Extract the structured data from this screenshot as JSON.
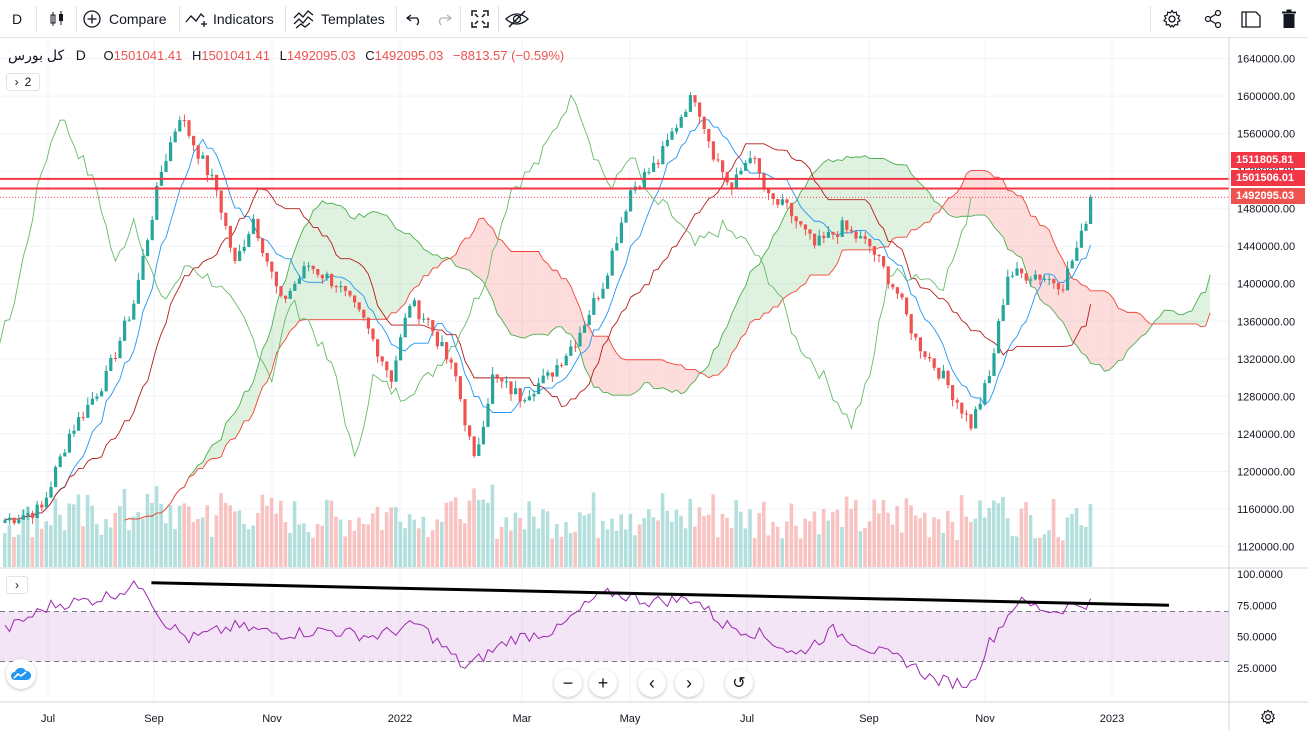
{
  "toolbar": {
    "interval": "D",
    "compare_label": "Compare",
    "indicators_label": "Indicators",
    "templates_label": "Templates"
  },
  "legend": {
    "symbol": "کل بورس",
    "interval": "D",
    "open_label": "O",
    "open": "1501041.41",
    "high_label": "H",
    "high": "1501041.41",
    "low_label": "L",
    "low": "1492095.03",
    "close_label": "C",
    "close": "1492095.03",
    "change": "−8813.57 (−0.59%)",
    "indicator_count": "2"
  },
  "price_tags": [
    {
      "text": "1511805.81",
      "color": "#f23645"
    },
    {
      "text": "1501506.01",
      "color": "#f23645"
    },
    {
      "text": "1492095.03",
      "color": "#ef5350"
    }
  ],
  "colors": {
    "up": "#26a69a",
    "down": "#ef5350",
    "kumo_bull": "#4caf50",
    "kumo_bear": "#f44336",
    "tenkan": "#2196f3",
    "kijun": "#b71c1c",
    "rsi": "#9c27b0"
  },
  "chart_data": {
    "type": "candlestick",
    "price_axis_ticks": [
      "1640000.00",
      "1600000.00",
      "1560000.00",
      "1520000.00",
      "1480000.00",
      "1440000.00",
      "1400000.00",
      "1360000.00",
      "1320000.00",
      "1280000.00",
      "1240000.00",
      "1200000.00",
      "1160000.00",
      "1120000.00"
    ],
    "price_range": [
      1098000,
      1662000
    ],
    "time_axis_labels": [
      "Jul",
      "Sep",
      "Nov",
      "2022",
      "Mar",
      "May",
      "Jul",
      "Sep",
      "Nov",
      "2023"
    ],
    "horizontal_lines": [
      1511805.81,
      1501506.01
    ],
    "close_keyframes": [
      [
        0,
        1148000
      ],
      [
        8,
        1160000
      ],
      [
        14,
        1240000
      ],
      [
        22,
        1300000
      ],
      [
        28,
        1380000
      ],
      [
        34,
        1520000
      ],
      [
        38,
        1580000
      ],
      [
        42,
        1540000
      ],
      [
        46,
        1500000
      ],
      [
        50,
        1420000
      ],
      [
        54,
        1470000
      ],
      [
        60,
        1380000
      ],
      [
        66,
        1420000
      ],
      [
        72,
        1400000
      ],
      [
        78,
        1360000
      ],
      [
        84,
        1300000
      ],
      [
        88,
        1380000
      ],
      [
        92,
        1360000
      ],
      [
        98,
        1300000
      ],
      [
        102,
        1210000
      ],
      [
        106,
        1300000
      ],
      [
        112,
        1280000
      ],
      [
        118,
        1300000
      ],
      [
        124,
        1340000
      ],
      [
        130,
        1400000
      ],
      [
        136,
        1500000
      ],
      [
        142,
        1530000
      ],
      [
        148,
        1590000
      ],
      [
        150,
        1600000
      ],
      [
        154,
        1540000
      ],
      [
        158,
        1500000
      ],
      [
        162,
        1540000
      ],
      [
        166,
        1490000
      ],
      [
        170,
        1480000
      ],
      [
        176,
        1440000
      ],
      [
        182,
        1460000
      ],
      [
        188,
        1440000
      ],
      [
        194,
        1390000
      ],
      [
        198,
        1340000
      ],
      [
        204,
        1300000
      ],
      [
        210,
        1250000
      ],
      [
        214,
        1300000
      ],
      [
        218,
        1410000
      ],
      [
        224,
        1410000
      ],
      [
        230,
        1400000
      ],
      [
        234,
        1450000
      ],
      [
        236,
        1490000
      ]
    ],
    "rsi": {
      "levels": [
        70,
        30
      ],
      "axis_ticks": [
        "100.0000",
        "75.0000",
        "50.0000",
        "25.0000"
      ],
      "keyframes": [
        [
          0,
          55
        ],
        [
          10,
          75
        ],
        [
          20,
          80
        ],
        [
          30,
          92
        ],
        [
          34,
          64
        ],
        [
          40,
          48
        ],
        [
          50,
          58
        ],
        [
          60,
          52
        ],
        [
          70,
          55
        ],
        [
          80,
          50
        ],
        [
          90,
          60
        ],
        [
          100,
          25
        ],
        [
          110,
          48
        ],
        [
          120,
          55
        ],
        [
          128,
          80
        ],
        [
          132,
          85
        ],
        [
          140,
          78
        ],
        [
          150,
          80
        ],
        [
          156,
          60
        ],
        [
          164,
          52
        ],
        [
          172,
          35
        ],
        [
          180,
          55
        ],
        [
          188,
          40
        ],
        [
          196,
          30
        ],
        [
          202,
          15
        ],
        [
          210,
          12
        ],
        [
          214,
          45
        ],
        [
          220,
          78
        ],
        [
          228,
          70
        ],
        [
          232,
          75
        ],
        [
          236,
          77
        ]
      ],
      "trendline": [
        [
          34,
          93
        ],
        [
          259,
          75
        ]
      ]
    }
  }
}
